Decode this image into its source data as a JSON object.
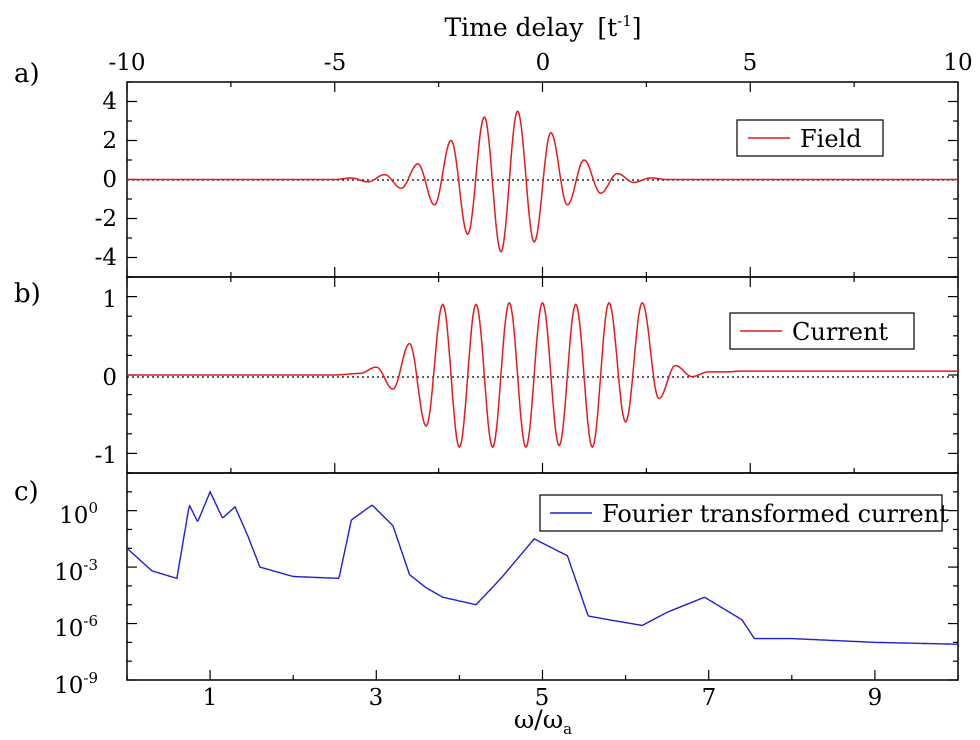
{
  "figure": {
    "top_axis_title": "Time delay",
    "top_axis_unit": "[t",
    "top_axis_unit_sup": "-1",
    "top_axis_unit_close": "]",
    "bottom_axis_title": "ω/ω",
    "bottom_axis_sub": "a"
  },
  "chart_data": [
    {
      "panel": "a)",
      "type": "line",
      "legend": "Field",
      "legend_position": "top-right",
      "xlabel": "Time delay [t^-1]",
      "xlim": [
        -10,
        10
      ],
      "xticks": [
        "-10",
        "-5",
        "0",
        "5",
        "10"
      ],
      "ylim": [
        -5,
        5
      ],
      "yticks": [
        "4",
        "2",
        "0",
        "-2",
        "-4"
      ],
      "zero_line": true,
      "color": "#e41a1c",
      "series": {
        "x": [
          -10,
          -5,
          -4.6,
          -4.2,
          -3.8,
          -3.4,
          -3.0,
          -2.6,
          -2.2,
          -1.8,
          -1.4,
          -1.0,
          -0.6,
          -0.2,
          0.2,
          0.6,
          1.0,
          1.4,
          1.8,
          2.2,
          2.6,
          3.0,
          3.4,
          3.8,
          4.2,
          4.6,
          5.0,
          10
        ],
        "y": [
          0,
          0,
          0.08,
          -0.12,
          0.25,
          -0.45,
          0.8,
          -1.3,
          2.0,
          -2.8,
          3.2,
          -3.7,
          3.5,
          -3.2,
          2.4,
          -1.3,
          1.0,
          -0.7,
          0.3,
          -0.15,
          0.08,
          0,
          0,
          0,
          0,
          0,
          0,
          0
        ]
      }
    },
    {
      "panel": "b)",
      "type": "line",
      "legend": "Current",
      "legend_position": "top-right",
      "xlim": [
        -10,
        10
      ],
      "ylim": [
        -1.25,
        1.25
      ],
      "yticks": [
        "1",
        "0",
        "-1"
      ],
      "zero_line": true,
      "color": "#e41a1c",
      "series": {
        "x": [
          -10,
          -5,
          -4.4,
          -4.0,
          -3.6,
          -3.2,
          -2.8,
          -2.4,
          -2.0,
          -1.6,
          -1.2,
          -0.8,
          -0.4,
          0.0,
          0.4,
          0.8,
          1.2,
          1.6,
          2.0,
          2.4,
          2.8,
          3.2,
          3.6,
          4.0,
          4.4,
          4.8,
          10
        ],
        "y": [
          0,
          0,
          0.02,
          0.1,
          -0.18,
          0.4,
          -0.65,
          0.9,
          -0.92,
          0.9,
          -0.92,
          0.92,
          -0.92,
          0.92,
          -0.9,
          0.9,
          -0.92,
          0.92,
          -0.6,
          0.92,
          -0.3,
          0.12,
          -0.02,
          0.04,
          0.04,
          0.05,
          0.05
        ]
      }
    },
    {
      "panel": "c)",
      "type": "line",
      "legend": "Fourier transformed current",
      "legend_position": "top-right",
      "xlabel": "ω/ω_a",
      "xlim": [
        0,
        10
      ],
      "xticks": [
        "1",
        "3",
        "5",
        "7",
        "9"
      ],
      "ylim_log10": [
        -9,
        2
      ],
      "yticks": [
        "10^0",
        "10^-3",
        "10^-6",
        "10^-9"
      ],
      "color": "#1f1fd6",
      "series": {
        "x": [
          0,
          0.3,
          0.6,
          0.75,
          0.85,
          1.0,
          1.15,
          1.3,
          1.45,
          1.6,
          2.0,
          2.55,
          2.7,
          2.95,
          3.2,
          3.4,
          3.6,
          3.8,
          4.2,
          4.5,
          4.9,
          5.3,
          5.55,
          5.8,
          6.2,
          6.5,
          6.95,
          7.4,
          7.55,
          8.0,
          9.0,
          10.0
        ],
        "log10_y": [
          -2.0,
          -3.2,
          -3.6,
          0.3,
          -0.6,
          1.0,
          -0.4,
          0.2,
          -1.3,
          -3.0,
          -3.5,
          -3.6,
          -0.5,
          0.3,
          -0.8,
          -3.4,
          -4.1,
          -4.6,
          -5.0,
          -3.6,
          -1.5,
          -2.4,
          -5.6,
          -5.8,
          -6.1,
          -5.4,
          -4.6,
          -5.8,
          -6.8,
          -6.8,
          -7.0,
          -7.1
        ]
      }
    }
  ]
}
